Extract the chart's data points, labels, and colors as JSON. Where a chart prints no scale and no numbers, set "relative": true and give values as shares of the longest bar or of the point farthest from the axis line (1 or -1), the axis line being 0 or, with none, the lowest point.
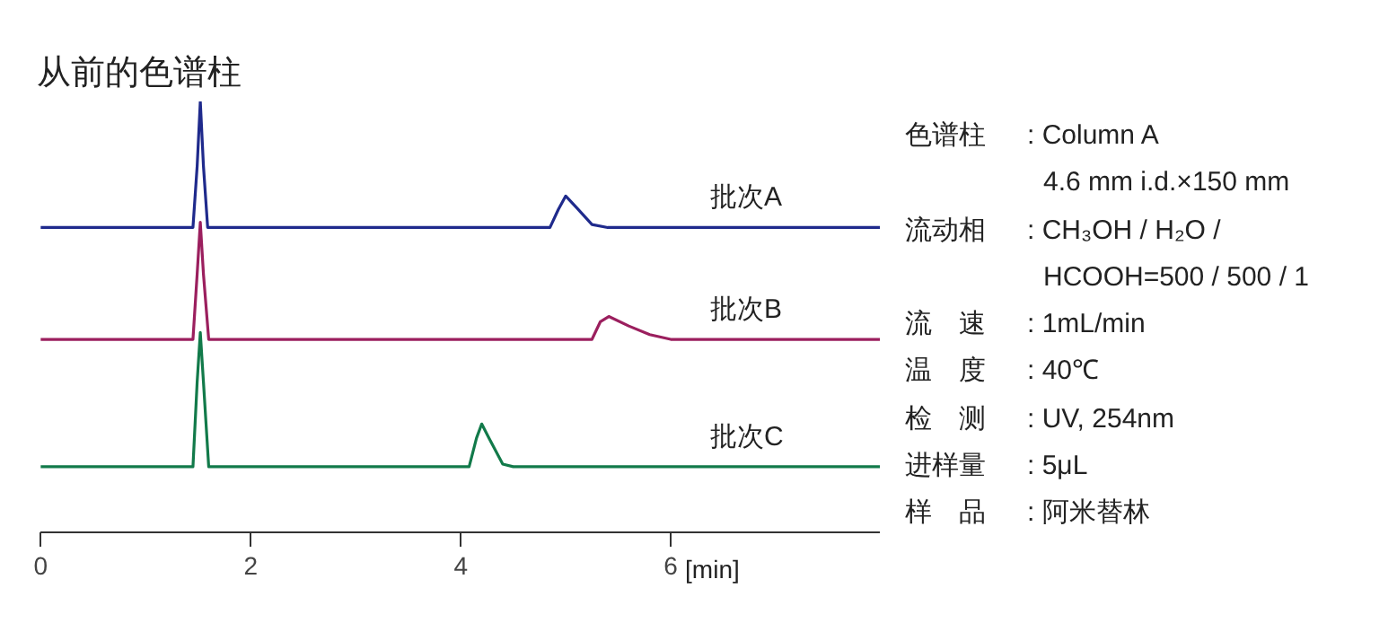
{
  "chart_data": {
    "type": "line",
    "title": "从前的色谱柱",
    "relative": true,
    "xlabel": "[min]",
    "xlim": [
      0,
      8
    ],
    "xticks": [
      0,
      2,
      4,
      6
    ],
    "grid": false,
    "legend": false,
    "marker": "none",
    "line_style": "solid",
    "tick_labels": "x",
    "series": [
      {
        "name": "批次A",
        "color": "#1f2a8c",
        "x": [
          0,
          1.45,
          1.49,
          1.52,
          1.55,
          1.59,
          4.85,
          4.93,
          5.0,
          5.1,
          5.25,
          5.4,
          8
        ],
        "values": [
          0.708,
          0.708,
          0.85,
          1.0,
          0.85,
          0.708,
          0.708,
          0.75,
          0.781,
          0.755,
          0.715,
          0.708,
          0.708
        ]
      },
      {
        "name": "批次B",
        "color": "#9b1f5e",
        "x": [
          0,
          1.45,
          1.49,
          1.52,
          1.55,
          1.6,
          5.25,
          5.33,
          5.41,
          5.6,
          5.8,
          6.0,
          8
        ],
        "values": [
          0.449,
          0.449,
          0.6,
          0.72,
          0.6,
          0.449,
          0.449,
          0.49,
          0.502,
          0.48,
          0.46,
          0.449,
          0.449
        ]
      },
      {
        "name": "批次C",
        "color": "#127a4a",
        "x": [
          0,
          1.45,
          1.49,
          1.52,
          1.55,
          1.6,
          4.08,
          4.15,
          4.2,
          4.27,
          4.4,
          4.5,
          8
        ],
        "values": [
          0.154,
          0.154,
          0.35,
          0.465,
          0.35,
          0.154,
          0.154,
          0.22,
          0.253,
          0.22,
          0.16,
          0.154,
          0.154
        ]
      }
    ],
    "annotations": [
      "色谱柱 : Column A",
      "4.6 mm i.d.×150 mm",
      "流动相 : CH₃OH / H₂O /",
      "HCOOH=500 / 500 / 1",
      "流　速 : 1mL/min",
      "温　度 : 40℃",
      "检　测 : UV, 254nm",
      "进样量 : 5μL",
      "样　品 : 阿米替林"
    ]
  }
}
